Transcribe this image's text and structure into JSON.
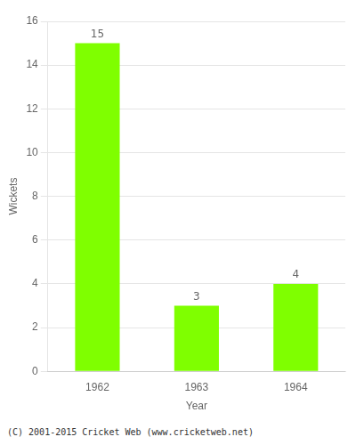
{
  "chart_data": {
    "type": "bar",
    "categories": [
      "1962",
      "1963",
      "1964"
    ],
    "values": [
      15,
      3,
      4
    ],
    "color": "#7fff00",
    "xlabel": "Year",
    "ylabel": "Wickets",
    "ylim": [
      0,
      16
    ],
    "yticks": [
      0,
      2,
      4,
      6,
      8,
      10,
      12,
      14,
      16
    ],
    "grid": true,
    "data_labels": true,
    "footnote": "(C) 2001-2015 Cricket Web (www.cricketweb.net)"
  }
}
